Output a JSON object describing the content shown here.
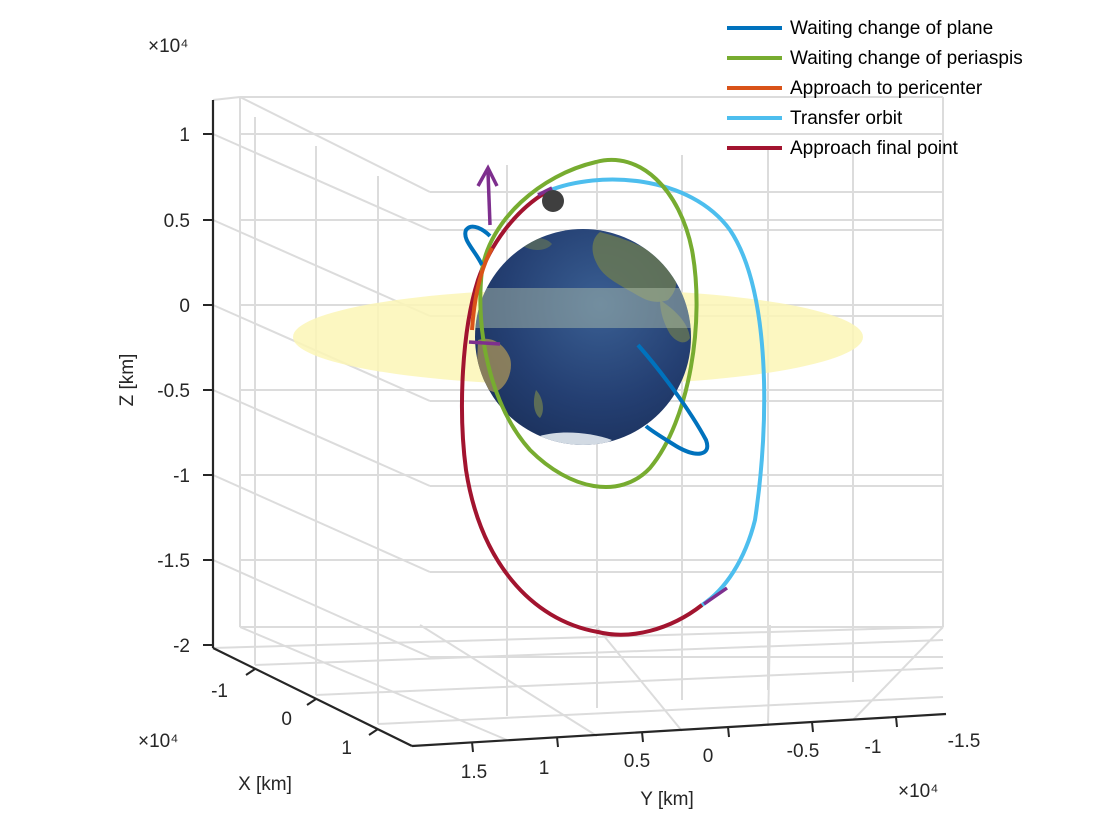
{
  "chart_data": {
    "type": "line",
    "title": "",
    "view": "3d",
    "grid": true,
    "legend_placement": "top-right",
    "axes": {
      "x": {
        "label": "X [km]",
        "exponent_label": "×10⁴",
        "ticks": [
          "-1",
          "0",
          "1"
        ],
        "tick_values": [
          -1,
          0,
          1
        ]
      },
      "y": {
        "label": "Y [km]",
        "exponent_label": "×10⁴",
        "ticks": [
          "1.5",
          "1",
          "0.5",
          "0",
          "-0.5",
          "-1",
          "-1.5"
        ],
        "tick_values": [
          1.5,
          1,
          0.5,
          0,
          -0.5,
          -1,
          -1.5
        ]
      },
      "z": {
        "label": "Z [km]",
        "exponent_label": "×10⁴",
        "ticks": [
          "1",
          "0.5",
          "0",
          "-0.5",
          "-1",
          "-1.5",
          "-2"
        ],
        "tick_values": [
          1,
          0.5,
          0,
          -0.5,
          -1,
          -1.5,
          -2
        ]
      }
    },
    "series": [
      {
        "name": "Waiting change of plane",
        "color": "#0072BD"
      },
      {
        "name": "Waiting change of periaspis",
        "color": "#77AC30"
      },
      {
        "name": "Approach to pericenter",
        "color": "#D95319"
      },
      {
        "name": "Transfer orbit",
        "color": "#4DBEEE"
      },
      {
        "name": "Approach final point",
        "color": "#A2142F"
      }
    ],
    "objects": [
      {
        "name": "earth-globe",
        "color": "#1f3a6b"
      },
      {
        "name": "equatorial-plane-disc",
        "color": "#fbf6b6"
      },
      {
        "name": "target-point-marker",
        "color": "#404040"
      },
      {
        "name": "delta-v-arrows",
        "color": "#7E2F8E"
      }
    ]
  }
}
